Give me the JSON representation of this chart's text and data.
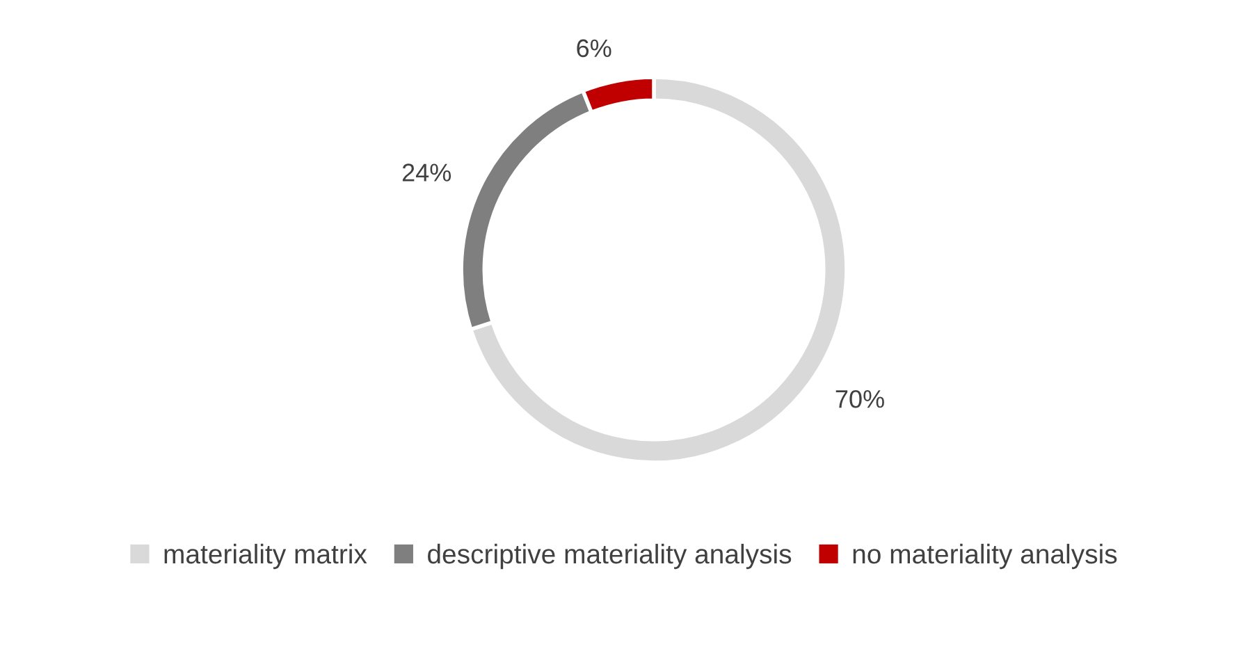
{
  "chart_data": {
    "type": "donut",
    "categories": [
      "materiality matrix",
      "descriptive materiality analysis",
      "no materiality analysis"
    ],
    "values": [
      70,
      24,
      6
    ],
    "colors": [
      "#d9d9d9",
      "#7f7f7f",
      "#c00000"
    ],
    "value_labels": [
      "70%",
      "24%",
      "6%"
    ],
    "legend": "bottom"
  }
}
